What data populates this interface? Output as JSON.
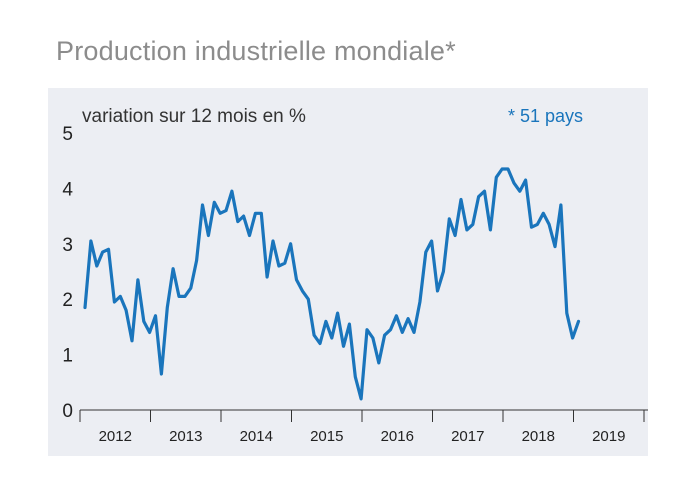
{
  "title": "Production industrielle mondiale*",
  "chart_data": {
    "type": "line",
    "title": "Production industrielle mondiale*",
    "ylabel": "variation sur 12 mois en %",
    "xlabel": "",
    "note": "* 51 pays",
    "ylim": [
      0,
      5
    ],
    "yticks": [
      "0",
      "1",
      "2",
      "3",
      "4",
      "5"
    ],
    "xticks": [
      "2012",
      "2013",
      "2014",
      "2015",
      "2016",
      "2017",
      "2018",
      "2019"
    ],
    "grid": false,
    "series_color": "#1a75bc",
    "series": [
      {
        "x_start": "2012-01",
        "values": [
          1.85,
          3.05,
          2.6,
          2.85,
          2.9,
          1.95,
          2.05,
          1.8,
          1.25,
          2.35,
          1.6,
          1.4,
          1.7,
          0.65,
          1.85,
          2.55,
          2.05,
          2.05,
          2.2,
          2.7,
          3.7,
          3.15,
          3.75,
          3.55,
          3.6,
          3.95,
          3.4,
          3.5,
          3.15,
          3.55,
          3.55,
          2.4,
          3.05,
          2.6,
          2.65,
          3.0,
          2.35,
          2.15,
          2.0,
          1.35,
          1.2,
          1.6,
          1.3,
          1.75,
          1.15,
          1.55,
          0.6,
          0.2,
          1.45,
          1.3,
          0.85,
          1.35,
          1.45,
          1.7,
          1.4,
          1.65,
          1.4,
          1.95,
          2.85,
          3.05,
          2.15,
          2.5,
          3.45,
          3.15,
          3.8,
          3.25,
          3.35,
          3.85,
          3.95,
          3.25,
          4.2,
          4.35,
          4.35,
          4.1,
          3.95,
          4.15,
          3.3,
          3.35,
          3.55,
          3.35,
          2.95,
          3.7,
          1.75,
          1.3,
          1.6
        ]
      }
    ]
  }
}
